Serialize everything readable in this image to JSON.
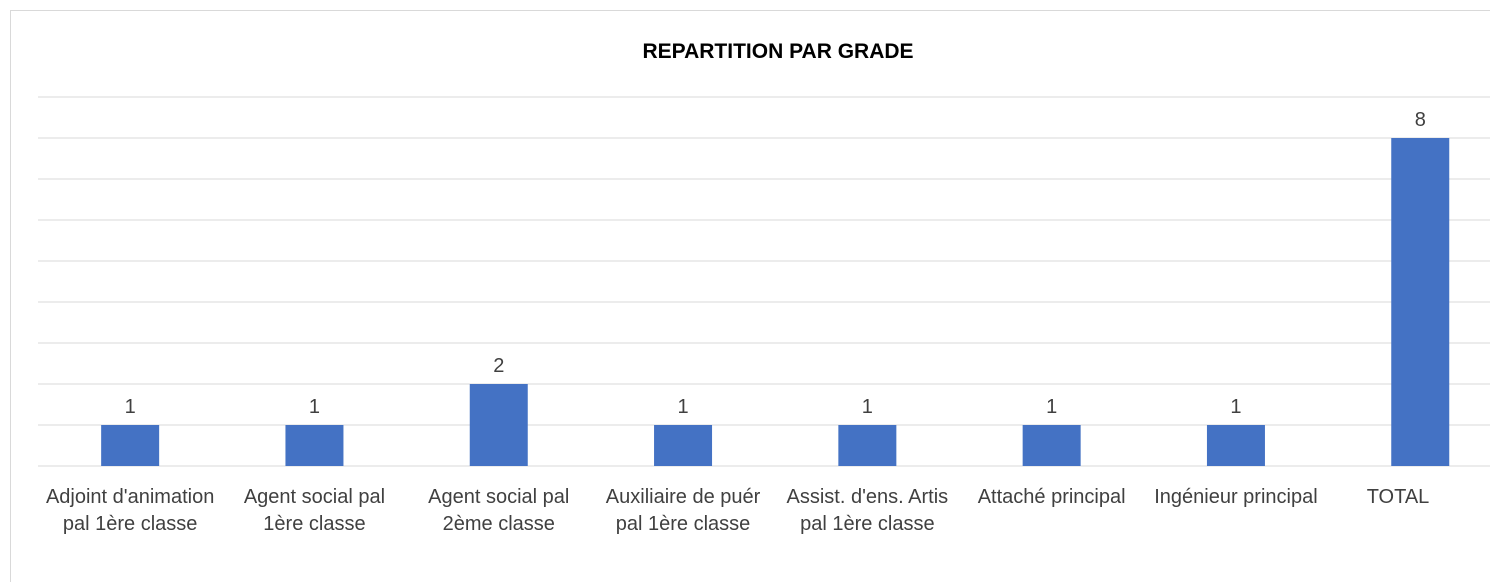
{
  "chart_data": {
    "type": "bar",
    "title": "REPARTITION PAR GRADE",
    "categories": [
      "Adjoint d'animation pal 1ère classe",
      "Agent social pal 1ère classe",
      "Agent social pal 2ème classe",
      "Auxiliaire de puér pal 1ère classe",
      "Assist. d'ens. Artis pal 1ère classe",
      "Attaché principal",
      "Ingénieur principal",
      "TOTAL"
    ],
    "values": [
      1,
      1,
      2,
      1,
      1,
      1,
      1,
      8
    ],
    "color": "#4472c4",
    "ylim": [
      0,
      9
    ],
    "yticks": [
      0,
      1,
      2,
      3,
      4,
      5,
      6,
      7,
      8,
      9
    ],
    "grid": true
  }
}
